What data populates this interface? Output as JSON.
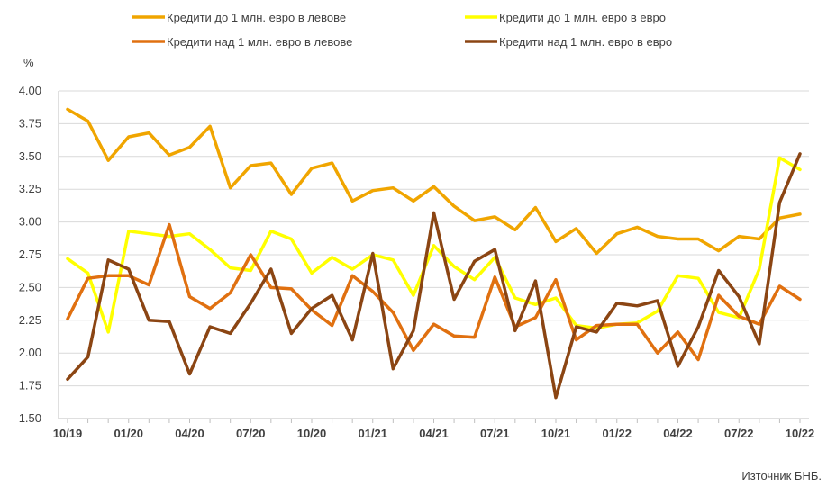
{
  "chart_data": {
    "type": "line",
    "ylabel": "%",
    "ylim": [
      1.5,
      4.0
    ],
    "y_ticks": [
      "4.00",
      "3.75",
      "3.50",
      "3.25",
      "3.00",
      "2.75",
      "2.50",
      "2.25",
      "2.00",
      "1.75",
      "1.50"
    ],
    "x_tick_labels": [
      "10/19",
      "01/20",
      "04/20",
      "07/20",
      "10/20",
      "01/21",
      "04/21",
      "07/21",
      "10/21",
      "01/22",
      "04/22",
      "07/22",
      "10/22"
    ],
    "x_tick_index": [
      0,
      3,
      6,
      9,
      12,
      15,
      18,
      21,
      24,
      27,
      30,
      33,
      36
    ],
    "grid": "horizontal",
    "legend_position": "top",
    "source": "Източник БНБ.",
    "series": [
      {
        "name": "Кредити до 1 млн. евро в левове",
        "color": "#F0A500",
        "values": [
          3.86,
          3.77,
          3.47,
          3.65,
          3.68,
          3.51,
          3.57,
          3.73,
          3.26,
          3.43,
          3.45,
          3.21,
          3.41,
          3.45,
          3.16,
          3.24,
          3.26,
          3.16,
          3.27,
          3.12,
          3.01,
          3.04,
          2.94,
          3.11,
          2.85,
          2.95,
          2.76,
          2.91,
          2.96,
          2.89,
          2.87,
          2.87,
          2.78,
          2.89,
          2.87,
          3.03,
          3.06
        ]
      },
      {
        "name": "Кредити до 1 млн. евро в евро",
        "color": "#FFFF00",
        "values": [
          2.72,
          2.61,
          2.16,
          2.93,
          2.91,
          2.89,
          2.91,
          2.79,
          2.65,
          2.63,
          2.93,
          2.87,
          2.61,
          2.73,
          2.64,
          2.75,
          2.71,
          2.44,
          2.82,
          2.66,
          2.56,
          2.73,
          2.42,
          2.37,
          2.42,
          2.21,
          2.19,
          2.22,
          2.23,
          2.32,
          2.59,
          2.57,
          2.31,
          2.27,
          2.64,
          3.49,
          3.4
        ]
      },
      {
        "name": "Кредити над 1 млн. евро в левове",
        "color": "#E07010",
        "values": [
          2.26,
          2.57,
          2.59,
          2.59,
          2.52,
          2.98,
          2.43,
          2.34,
          2.46,
          2.75,
          2.5,
          2.49,
          2.33,
          2.21,
          2.59,
          2.47,
          2.31,
          2.02,
          2.22,
          2.13,
          2.12,
          2.58,
          2.2,
          2.27,
          2.56,
          2.1,
          2.21,
          2.22,
          2.22,
          2.0,
          2.16,
          1.95,
          2.44,
          2.28,
          2.22,
          2.51,
          2.41
        ]
      },
      {
        "name": "Кредити над 1 млн. евро в евро",
        "color": "#8B4513",
        "values": [
          1.8,
          1.97,
          2.71,
          2.64,
          2.25,
          2.24,
          1.84,
          2.2,
          2.15,
          2.38,
          2.64,
          2.15,
          2.34,
          2.44,
          2.1,
          2.76,
          1.88,
          2.17,
          3.07,
          2.41,
          2.7,
          2.79,
          2.17,
          2.55,
          1.66,
          2.2,
          2.16,
          2.38,
          2.36,
          2.4,
          1.9,
          2.2,
          2.63,
          2.43,
          2.07,
          3.15,
          3.52
        ]
      }
    ]
  }
}
